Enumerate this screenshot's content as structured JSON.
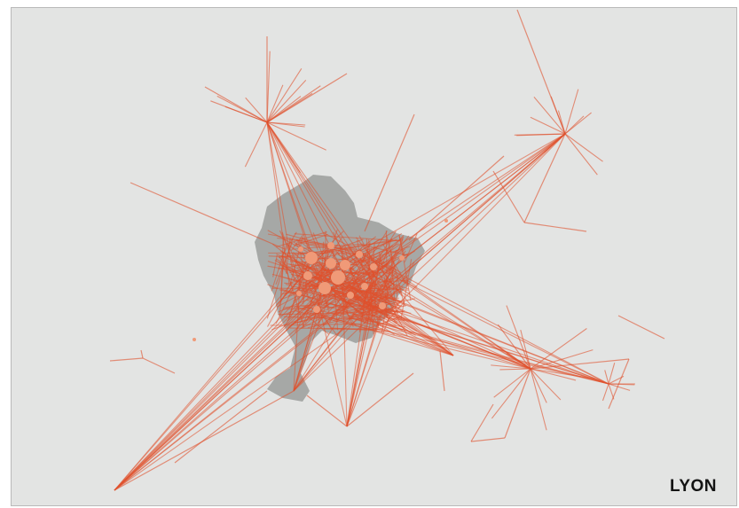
{
  "map": {
    "city_label": "LYON",
    "colors": {
      "background": "#e3e4e3",
      "urban_area": "#a6a8a6",
      "flow_line": "#e0502c",
      "node": "#f09a78"
    },
    "legend": null
  }
}
